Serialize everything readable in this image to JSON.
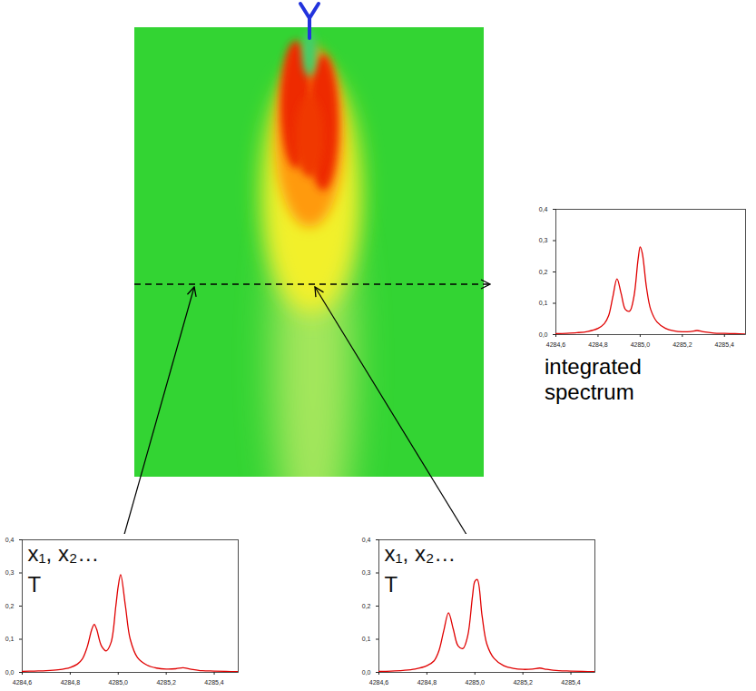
{
  "chart_data": [
    {
      "type": "line",
      "color": "#e00000",
      "caption": "integrated spectrum",
      "x": [
        4284.6,
        4284.65,
        4284.7,
        4284.75,
        4284.8,
        4284.83,
        4284.85,
        4284.87,
        4284.89,
        4284.91,
        4284.93,
        4284.95,
        4284.97,
        4284.99,
        4285.0,
        4285.01,
        4285.03,
        4285.05,
        4285.08,
        4285.12,
        4285.16,
        4285.2,
        4285.24,
        4285.27,
        4285.3,
        4285.35,
        4285.4,
        4285.45,
        4285.5
      ],
      "values": [
        0.003,
        0.004,
        0.006,
        0.01,
        0.02,
        0.035,
        0.06,
        0.12,
        0.178,
        0.13,
        0.08,
        0.075,
        0.12,
        0.24,
        0.28,
        0.26,
        0.15,
        0.08,
        0.04,
        0.02,
        0.012,
        0.009,
        0.01,
        0.013,
        0.009,
        0.005,
        0.004,
        0.003,
        0.002
      ],
      "xlim": [
        4284.6,
        4285.5
      ],
      "ylim": [
        0,
        0.4
      ],
      "xticks": [
        {
          "value": 4284.6,
          "label": "4284,6"
        },
        {
          "value": 4284.8,
          "label": "4284,8"
        },
        {
          "value": 4285.0,
          "label": "4285,0"
        },
        {
          "value": 4285.2,
          "label": "4285,2"
        },
        {
          "value": 4285.4,
          "label": "4285,4"
        }
      ],
      "yticks": [
        {
          "value": 0,
          "label": "0,0"
        },
        {
          "value": 0.1,
          "label": "0,1"
        },
        {
          "value": 0.2,
          "label": "0,2"
        },
        {
          "value": 0.3,
          "label": "0,3"
        },
        {
          "value": 0.4,
          "label": "0,4"
        }
      ]
    },
    {
      "type": "line",
      "color": "#e00000",
      "annotations": [
        "x₁, x₂…",
        "T"
      ],
      "x": [
        4284.6,
        4284.65,
        4284.7,
        4284.75,
        4284.8,
        4284.83,
        4284.85,
        4284.87,
        4284.89,
        4284.9,
        4284.91,
        4284.93,
        4284.95,
        4284.97,
        4284.99,
        4285.0,
        4285.01,
        4285.03,
        4285.05,
        4285.08,
        4285.12,
        4285.16,
        4285.2,
        4285.24,
        4285.27,
        4285.3,
        4285.35,
        4285.4,
        4285.45,
        4285.5
      ],
      "values": [
        0.003,
        0.004,
        0.005,
        0.008,
        0.015,
        0.025,
        0.04,
        0.075,
        0.13,
        0.145,
        0.13,
        0.08,
        0.065,
        0.09,
        0.2,
        0.26,
        0.295,
        0.2,
        0.1,
        0.045,
        0.022,
        0.013,
        0.01,
        0.011,
        0.014,
        0.01,
        0.005,
        0.004,
        0.003,
        0.002
      ],
      "xlim": [
        4284.6,
        4285.5
      ],
      "ylim": [
        0,
        0.4
      ],
      "xticks": [
        {
          "value": 4284.6,
          "label": "4284,6"
        },
        {
          "value": 4284.8,
          "label": "4284,8"
        },
        {
          "value": 4285.0,
          "label": "4285,0"
        },
        {
          "value": 4285.2,
          "label": "4285,2"
        },
        {
          "value": 4285.4,
          "label": "4285,4"
        }
      ],
      "yticks": [
        {
          "value": 0,
          "label": "0,0"
        },
        {
          "value": 0.1,
          "label": "0,1"
        },
        {
          "value": 0.2,
          "label": "0,2"
        },
        {
          "value": 0.3,
          "label": "0,3"
        },
        {
          "value": 0.4,
          "label": "0,4"
        }
      ]
    },
    {
      "type": "line",
      "color": "#e00000",
      "annotations": [
        "x₁, x₂…",
        "T"
      ],
      "x": [
        4284.6,
        4284.65,
        4284.7,
        4284.75,
        4284.8,
        4284.83,
        4284.85,
        4284.87,
        4284.89,
        4284.91,
        4284.93,
        4284.95,
        4284.97,
        4284.99,
        4285.0,
        4285.01,
        4285.03,
        4285.05,
        4285.08,
        4285.12,
        4285.16,
        4285.2,
        4285.24,
        4285.27,
        4285.3,
        4285.35,
        4285.4,
        4285.45,
        4285.5
      ],
      "values": [
        0.003,
        0.004,
        0.006,
        0.01,
        0.02,
        0.035,
        0.065,
        0.125,
        0.18,
        0.13,
        0.08,
        0.072,
        0.11,
        0.23,
        0.275,
        0.28,
        0.17,
        0.085,
        0.042,
        0.02,
        0.012,
        0.009,
        0.01,
        0.013,
        0.009,
        0.005,
        0.004,
        0.003,
        0.002
      ],
      "xlim": [
        4284.6,
        4285.5
      ],
      "ylim": [
        0,
        0.4
      ],
      "xticks": [
        {
          "value": 4284.6,
          "label": "4284,6"
        },
        {
          "value": 4284.8,
          "label": "4284,8"
        },
        {
          "value": 4285.0,
          "label": "4285,0"
        },
        {
          "value": 4285.2,
          "label": "4285,2"
        },
        {
          "value": 4285.4,
          "label": "4285,4"
        }
      ],
      "yticks": [
        {
          "value": 0,
          "label": "0,0"
        },
        {
          "value": 0.1,
          "label": "0,1"
        },
        {
          "value": 0.2,
          "label": "0,2"
        },
        {
          "value": 0.3,
          "label": "0,3"
        },
        {
          "value": 0.4,
          "label": "0,4"
        }
      ]
    }
  ]
}
